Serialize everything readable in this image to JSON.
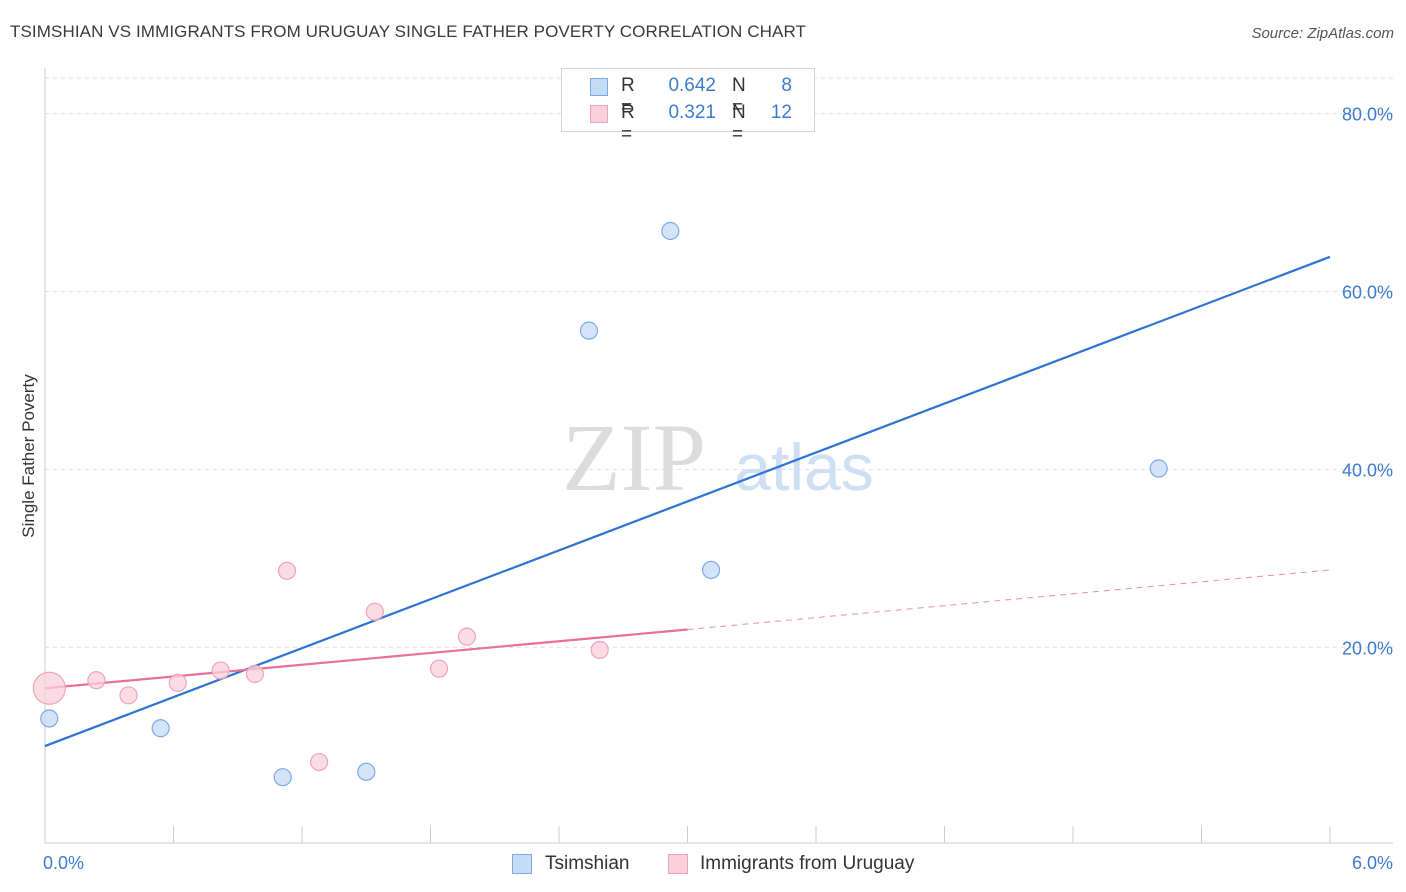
{
  "title": "TSIMSHIAN VS IMMIGRANTS FROM URUGUAY SINGLE FATHER POVERTY CORRELATION CHART",
  "source": "Source: ZipAtlas.com",
  "watermark": {
    "zip": "ZIP",
    "atlas": "atlas"
  },
  "legend": [
    {
      "r_label": "R =",
      "r_value": "0.642",
      "n_label": "N =",
      "n_value": "8"
    },
    {
      "r_label": "R =",
      "r_value": "0.321",
      "n_label": "N =",
      "n_value": "12"
    }
  ],
  "chart_data": {
    "type": "scatter",
    "title": "TSIMSHIAN VS IMMIGRANTS FROM URUGUAY SINGLE FATHER POVERTY CORRELATION CHART",
    "xlabel": "",
    "ylabel": "Single Father Poverty",
    "xlim": [
      0,
      6
    ],
    "ylim": [
      -2,
      84
    ],
    "x_tick_labels": [
      "0.0%",
      "6.0%"
    ],
    "y_ticks": [
      20,
      40,
      60,
      80
    ],
    "y_tick_labels": [
      "20.0%",
      "40.0%",
      "60.0%",
      "80.0%"
    ],
    "grid": true,
    "legend_position": "top-center",
    "series": [
      {
        "name": "Tsimshian",
        "color": "#7aa9e6",
        "fill": "#c5dbf6",
        "line_color": "#2c73d2",
        "points": [
          {
            "x": 0.02,
            "y": 12.0,
            "big": false
          },
          {
            "x": 0.54,
            "y": 10.9,
            "big": false
          },
          {
            "x": 1.11,
            "y": 5.4,
            "big": false
          },
          {
            "x": 1.5,
            "y": 6.0,
            "big": false
          },
          {
            "x": 2.54,
            "y": 55.6,
            "big": false
          },
          {
            "x": 2.92,
            "y": 66.8,
            "big": false
          },
          {
            "x": 3.11,
            "y": 28.7,
            "big": false
          },
          {
            "x": 5.2,
            "y": 40.1,
            "big": false
          }
        ],
        "trend": {
          "x0": 0.0,
          "y0": 8.9,
          "x1": 6.0,
          "y1": 63.9,
          "dashed_to": null
        }
      },
      {
        "name": "Immigrants from Uruguay",
        "color": "#f0a3b9",
        "fill": "#f9d0dc",
        "line_color": "#e8709a",
        "points": [
          {
            "x": 0.02,
            "y": 15.4,
            "big": true
          },
          {
            "x": 0.24,
            "y": 16.3,
            "big": false
          },
          {
            "x": 0.39,
            "y": 14.6,
            "big": false
          },
          {
            "x": 0.62,
            "y": 16.0,
            "big": false
          },
          {
            "x": 0.82,
            "y": 17.4,
            "big": false
          },
          {
            "x": 0.98,
            "y": 17.0,
            "big": false
          },
          {
            "x": 1.13,
            "y": 28.6,
            "big": false
          },
          {
            "x": 1.28,
            "y": 7.1,
            "big": false
          },
          {
            "x": 1.54,
            "y": 24.0,
            "big": false
          },
          {
            "x": 1.84,
            "y": 17.6,
            "big": false
          },
          {
            "x": 1.97,
            "y": 21.2,
            "big": false
          },
          {
            "x": 2.59,
            "y": 19.7,
            "big": false
          }
        ],
        "trend": {
          "x0": 0.0,
          "y0": 15.4,
          "x1": 3.0,
          "y1": 22.0,
          "dashed_to": {
            "x": 6.0,
            "y": 28.7
          }
        }
      }
    ]
  }
}
